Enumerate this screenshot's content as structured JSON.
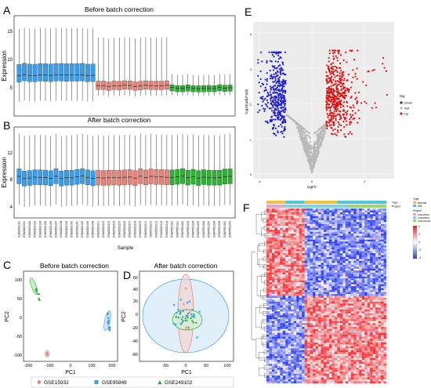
{
  "panels": {
    "A": {
      "letter": "A",
      "title": "Before batch correction",
      "ylabel": "Expression",
      "yticks": [
        "5",
        "10",
        "15"
      ],
      "groups": [
        {
          "n": 15,
          "color": "#3c9eea",
          "median": 7.9,
          "q1": 6.8,
          "q3": 9.9,
          "lo": 3.3,
          "hi": 16.2
        },
        {
          "n": 14,
          "color": "#e8837a",
          "median": 6.0,
          "q1": 5.3,
          "q3": 6.8,
          "lo": 4.2,
          "hi": 14.5
        },
        {
          "n": 12,
          "color": "#2bb331",
          "median": 5.6,
          "q1": 5.0,
          "q3": 6.1,
          "lo": 4.3,
          "hi": 8.0
        }
      ]
    },
    "B": {
      "letter": "B",
      "title": "After batch correction",
      "ylabel": "Expression",
      "xlabel": "Sample",
      "yticks": [
        "4",
        "8",
        "12"
      ],
      "sample_ids": [
        "GSM2423130",
        "GSM2423131",
        "GSM2423132",
        "GSM2423133",
        "GSM2423134",
        "GSM2423135",
        "GSM2423136",
        "GSM2423137",
        "GSM2423138",
        "GSM2423139",
        "GSM2423140",
        "GSM2423141",
        "GSM2423142",
        "GSM2423143",
        "GSM2423144",
        "GSM2522201",
        "GSM2522202",
        "GSM2522203",
        "GSM2522204",
        "GSM2522205",
        "GSM2522206",
        "GSM2522207",
        "GSM2522208",
        "GSM2522209",
        "GSM2522210",
        "GSM2522211",
        "GSM2522212",
        "GSM2522213",
        "GSM2522214",
        "GSM7651230",
        "GSM7651231",
        "GSM7651232",
        "GSM7651233",
        "GSM7651234",
        "GSM7651235",
        "GSM7651236",
        "GSM7651237",
        "GSM7651238",
        "GSM7651239",
        "GSM7651240",
        "GSM7651241"
      ]
    },
    "C": {
      "letter": "C",
      "title": "Before batch correction",
      "xlabel": "PC1",
      "ylabel": "PC2",
      "xticks": [
        "-200",
        "-100",
        "0",
        "100",
        "200"
      ],
      "yticks": [
        "-100",
        "-50",
        "0",
        "50",
        "100"
      ]
    },
    "D": {
      "letter": "D",
      "title": "After batch correction",
      "xlabel": "PC1",
      "ylabel": "PC2",
      "xticks": [
        "-50",
        "0",
        "50",
        "100"
      ],
      "yticks": [
        "-60",
        "-40",
        "-20",
        "0",
        "20",
        "40",
        "60"
      ]
    },
    "E": {
      "letter": "E",
      "xlabel": "logFC",
      "ylabel": "-log10(adj.P.Val)",
      "yticks": [
        "0",
        "1",
        "2",
        "3",
        "4"
      ],
      "xticks": [
        "-2",
        "0",
        "2"
      ],
      "legend_title": "Sig",
      "legend_items": [
        "Down",
        "Not",
        "Up"
      ]
    },
    "F": {
      "letter": "F",
      "annotation_labels": [
        "Type",
        "Project"
      ],
      "legend": {
        "type_title": "Type",
        "types": [
          "Normal",
          "DM"
        ],
        "project_title": "Project",
        "projects": [
          "GSE15932",
          "GSE95849",
          "GSE249102"
        ],
        "scale_ticks": [
          "4",
          "2",
          "0",
          "-2",
          "-4"
        ]
      }
    }
  },
  "bottom_legend": [
    {
      "label": "GSE15932",
      "color": "#e8837a",
      "marker": "circle"
    },
    {
      "label": "GSE95849",
      "color": "#3c9eea",
      "marker": "square"
    },
    {
      "label": "GSE249102",
      "color": "#2bb331",
      "marker": "triangle"
    }
  ],
  "colors": {
    "red": "#e8837a",
    "blue": "#3c9eea",
    "green": "#2bb331",
    "volcano_down": "#1d1dd6",
    "volcano_up": "#e01010",
    "volcano_not": "#b8b8b8",
    "heat_low": "#2a3fb8",
    "heat_mid": "#ffffff",
    "heat_high": "#d8252b"
  }
}
